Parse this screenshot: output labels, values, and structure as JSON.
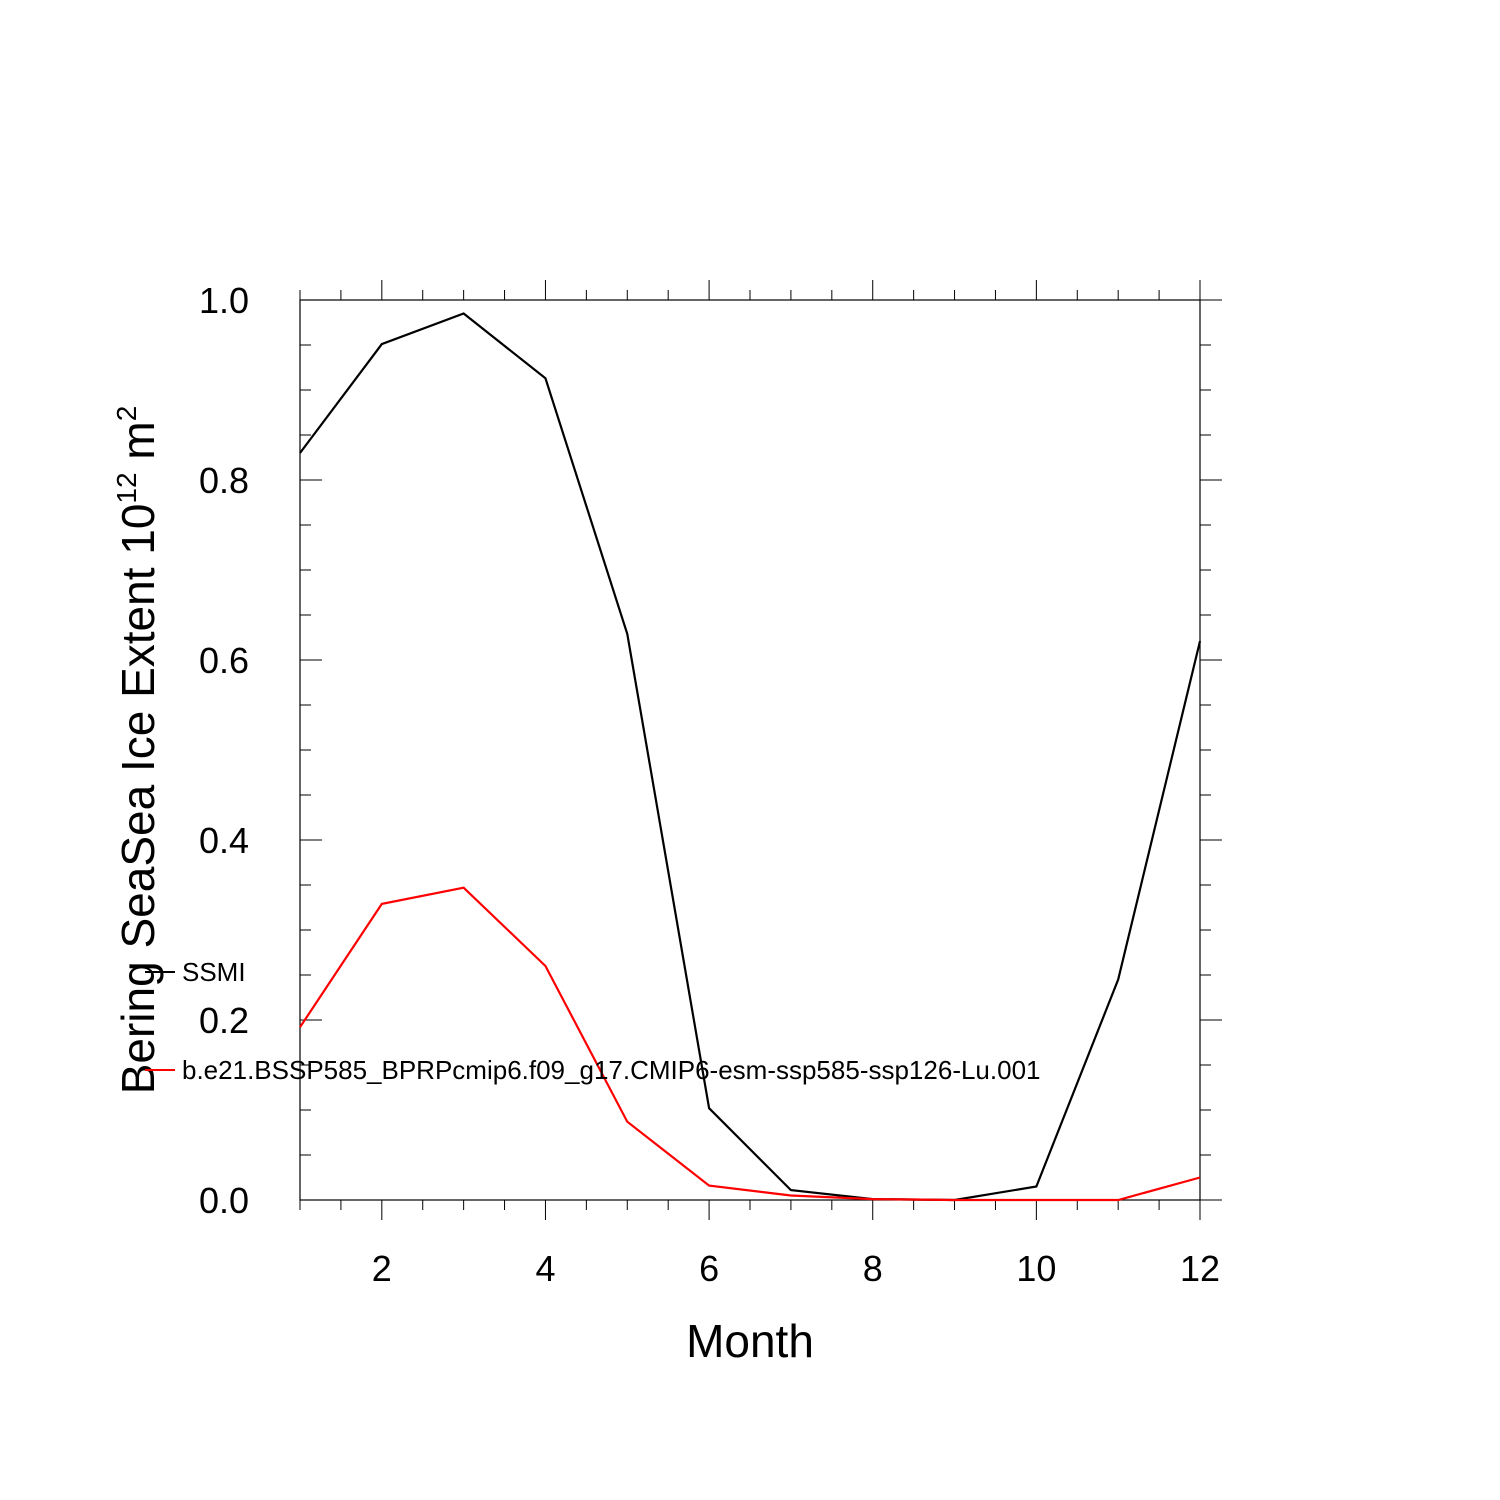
{
  "chart_data": {
    "type": "line",
    "title": "",
    "xlabel": "Month",
    "ylabel": {
      "main": "Bering SeaSea Ice Extent 10",
      "exponent": "12",
      "unit": " m",
      "unit_exponent": "2"
    },
    "xlim": [
      1,
      12
    ],
    "ylim": [
      0,
      1.0
    ],
    "x_ticks": [
      2,
      4,
      6,
      8,
      10,
      12
    ],
    "x_tick_labels": [
      "2",
      "4",
      "6",
      "8",
      "10",
      "12"
    ],
    "y_ticks": [
      0,
      0.2,
      0.4,
      0.6,
      0.8,
      1.0
    ],
    "y_tick_labels": [
      "0.0",
      "0.2",
      "0.4",
      "0.6",
      "0.8",
      "1.0"
    ],
    "grid": false,
    "legend_placement": "lower-left inside",
    "x": [
      1,
      2,
      3,
      4,
      5,
      6,
      7,
      8,
      9,
      10,
      11,
      12
    ],
    "series": [
      {
        "name": "SSMI",
        "color": "#000000",
        "values": [
          0.83,
          0.951,
          0.985,
          0.913,
          0.629,
          0.102,
          0.011,
          0.001,
          0.0,
          0.015,
          0.245,
          0.621
        ]
      },
      {
        "name": "b.e21.BSSP585_BPRPcmip6.f09_g17.CMIP6-esm-ssp585-ssp126-Lu.001",
        "color": "#ff0000",
        "values": [
          0.192,
          0.329,
          0.347,
          0.26,
          0.087,
          0.016,
          0.005,
          0.001,
          0.0,
          0.0,
          0.0,
          0.025
        ]
      }
    ]
  }
}
